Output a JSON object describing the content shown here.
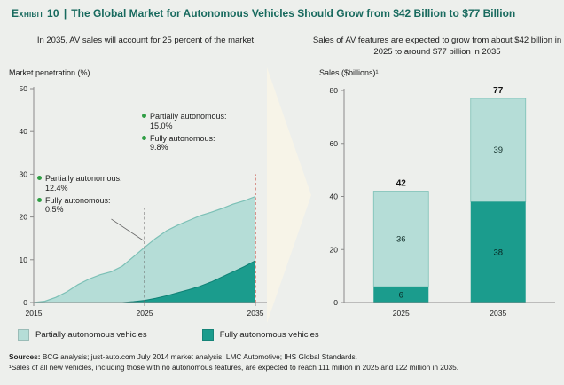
{
  "colors": {
    "title": "#186a5e",
    "partially": "#b5ddd7",
    "fully": "#1b9c8d",
    "area_edge": "#7cc0b6",
    "bullet": "#2f9e44",
    "dash_2025": "#666666",
    "dash_2035": "#c0392b",
    "axis": "#8a8a8a",
    "arrow": "#f7f4e8"
  },
  "header": {
    "exhibit_label": "Exhibit 10",
    "separator": "|",
    "title": "The Global Market for Autonomous Vehicles Should Grow from $42 Billion to $77 Billion"
  },
  "left_panel": {
    "heading": "In 2035, AV sales will account for 25 percent of the market",
    "y_axis_label": "Market penetration (%)",
    "annotation_2025": {
      "items": [
        {
          "label": "Partially autonomous: 12.4%"
        },
        {
          "label": "Fully autonomous: 0.5%"
        }
      ]
    },
    "annotation_2035": {
      "items": [
        {
          "label": "Partially autonomous: 15.0%"
        },
        {
          "label": "Fully autonomous: 9.8%"
        }
      ]
    }
  },
  "right_panel": {
    "heading": "Sales of AV features are expected to grow from about $42 billion in 2025 to around $77 billion in 2035",
    "y_axis_label": "Sales ($billions)¹"
  },
  "legend": {
    "items": [
      {
        "label": "Partially autonomous vehicles",
        "color_key": "partially"
      },
      {
        "label": "Fully autonomous vehicles",
        "color_key": "fully"
      }
    ]
  },
  "footer": {
    "sources_label": "Sources:",
    "sources_text": "BCG analysis; just-auto.com July 2014 market analysis; LMC Automotive; IHS Global Standards.",
    "footnote": "¹Sales of all new vehicles, including those with no autonomous features, are expected to reach 111 million in 2025 and 122 million in 2035."
  },
  "chart_data": [
    {
      "type": "area",
      "title": "In 2035, AV sales will account for 25 percent of the market",
      "xlabel": "",
      "ylabel": "Market penetration (%)",
      "xlim": [
        2015,
        2035.8
      ],
      "ylim": [
        0,
        50
      ],
      "yticks": [
        0,
        10,
        20,
        30,
        40,
        50
      ],
      "xticks": [
        2015,
        2025,
        2035
      ],
      "grid": false,
      "x": [
        2015,
        2016,
        2017,
        2018,
        2019,
        2020,
        2021,
        2022,
        2023,
        2024,
        2025,
        2026,
        2027,
        2028,
        2029,
        2030,
        2031,
        2032,
        2033,
        2034,
        2035
      ],
      "series": [
        {
          "name": "Fully autonomous vehicles",
          "values": [
            0,
            0,
            0,
            0,
            0,
            0,
            0,
            0,
            0,
            0.2,
            0.5,
            1.0,
            1.6,
            2.3,
            3.0,
            3.8,
            4.8,
            6.0,
            7.2,
            8.4,
            9.8
          ]
        },
        {
          "name": "Partially autonomous vehicles",
          "values": [
            0,
            0.3,
            1.2,
            2.5,
            4.2,
            5.5,
            6.5,
            7.2,
            8.5,
            10.5,
            12.4,
            14.0,
            15.2,
            15.8,
            16.2,
            16.5,
            16.3,
            16.0,
            15.8,
            15.4,
            15.0
          ]
        }
      ],
      "markers": [
        {
          "x": 2025,
          "top": 22,
          "style": "dashed-gray",
          "partially": 12.4,
          "fully": 0.5
        },
        {
          "x": 2035,
          "top": 30,
          "style": "dashed-red",
          "partially": 15.0,
          "fully": 9.8
        }
      ]
    },
    {
      "type": "stacked-bar",
      "title": "Sales of AV features are expected to grow from about $42 billion in 2025 to around $77 billion in 2035",
      "xlabel": "",
      "ylabel": "Sales ($billions)¹",
      "categories": [
        "2025",
        "2035"
      ],
      "series": [
        {
          "name": "Fully autonomous vehicles",
          "values": [
            6,
            38
          ]
        },
        {
          "name": "Partially autonomous vehicles",
          "values": [
            36,
            39
          ]
        }
      ],
      "totals": [
        42,
        77
      ],
      "ylim": [
        0,
        80
      ],
      "yticks": [
        0,
        20,
        40,
        60,
        80
      ],
      "grid": false,
      "legend_position": "bottom"
    }
  ]
}
